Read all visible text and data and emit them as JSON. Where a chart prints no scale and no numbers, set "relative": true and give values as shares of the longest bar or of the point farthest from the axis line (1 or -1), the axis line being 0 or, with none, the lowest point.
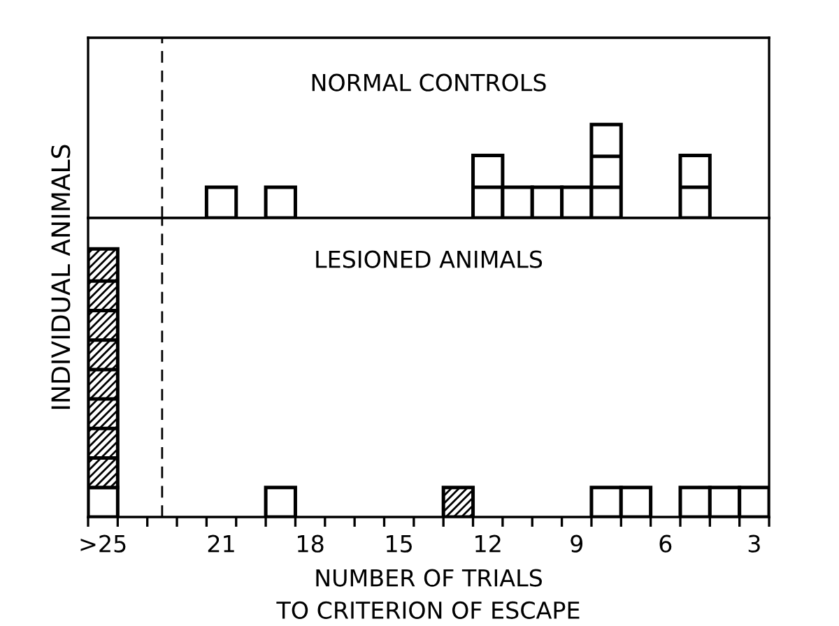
{
  "chart_data": [
    {
      "type": "bar",
      "title": "NORMAL CONTROLS",
      "ylabel": "INDIVIDUAL ANIMALS",
      "relative": true,
      "xlim": [
        25.5,
        2.5
      ],
      "tick_labels": false,
      "x": [
        21,
        19,
        12,
        11,
        10,
        9,
        8,
        5
      ],
      "series": [
        {
          "color": "#000000",
          "values": [
            0.33,
            0.33,
            0.67,
            0.33,
            0.33,
            0.33,
            1,
            0.67
          ]
        }
      ],
      "ref_lines": [
        {
          "axis": "x",
          "value": 23,
          "line_style": "dashed",
          "color": "#000000"
        }
      ]
    },
    {
      "type": "bar",
      "title": "LESIONED ANIMALS",
      "xlabel": "NUMBER OF TRIALS\nTO CRITERION OF ESCAPE",
      "relative": true,
      "stacked": true,
      "xlim": [
        25.5,
        2.5
      ],
      "tick_labels": "x",
      "x": [
        25,
        19,
        13,
        8,
        7,
        5,
        4,
        3
      ],
      "xticks": [
        {
          "value": 25.5,
          "label": null
        },
        {
          "value": 24.5,
          "label": null
        },
        {
          "value": 23.5,
          "label": null
        },
        {
          "value": 22.5,
          "label": null
        },
        {
          "value": 21.5,
          "label": null
        },
        {
          "value": 20.5,
          "label": null
        },
        {
          "value": 19.5,
          "label": null
        },
        {
          "value": 18.5,
          "label": null
        },
        {
          "value": 17.5,
          "label": null
        },
        {
          "value": 16.5,
          "label": null
        },
        {
          "value": 15.5,
          "label": null
        },
        {
          "value": 14.5,
          "label": null
        },
        {
          "value": 13.5,
          "label": null
        },
        {
          "value": 12.5,
          "label": null
        },
        {
          "value": 11.5,
          "label": null
        },
        {
          "value": 10.5,
          "label": null
        },
        {
          "value": 9.5,
          "label": null
        },
        {
          "value": 8.5,
          "label": null
        },
        {
          "value": 7.5,
          "label": null
        },
        {
          "value": 6.5,
          "label": null
        },
        {
          "value": 5.5,
          "label": null
        },
        {
          "value": 4.5,
          "label": null
        },
        {
          "value": 3.5,
          "label": null
        },
        {
          "value": 2.5,
          "label": null
        },
        {
          "value": 25,
          "label": ">25"
        },
        21,
        18,
        15,
        12,
        9,
        6,
        3
      ],
      "series": [
        {
          "color": "#000000",
          "values": [
            0.11,
            0.11,
            null,
            0.11,
            0.11,
            0.11,
            0.11,
            0.11
          ]
        },
        {
          "color": "#000000",
          "values": [
            0.89,
            null,
            0.11,
            null,
            null,
            null,
            null,
            null
          ]
        }
      ],
      "ref_lines": [
        {
          "axis": "x",
          "value": 23,
          "line_style": "dashed",
          "color": "#000000"
        }
      ]
    }
  ]
}
